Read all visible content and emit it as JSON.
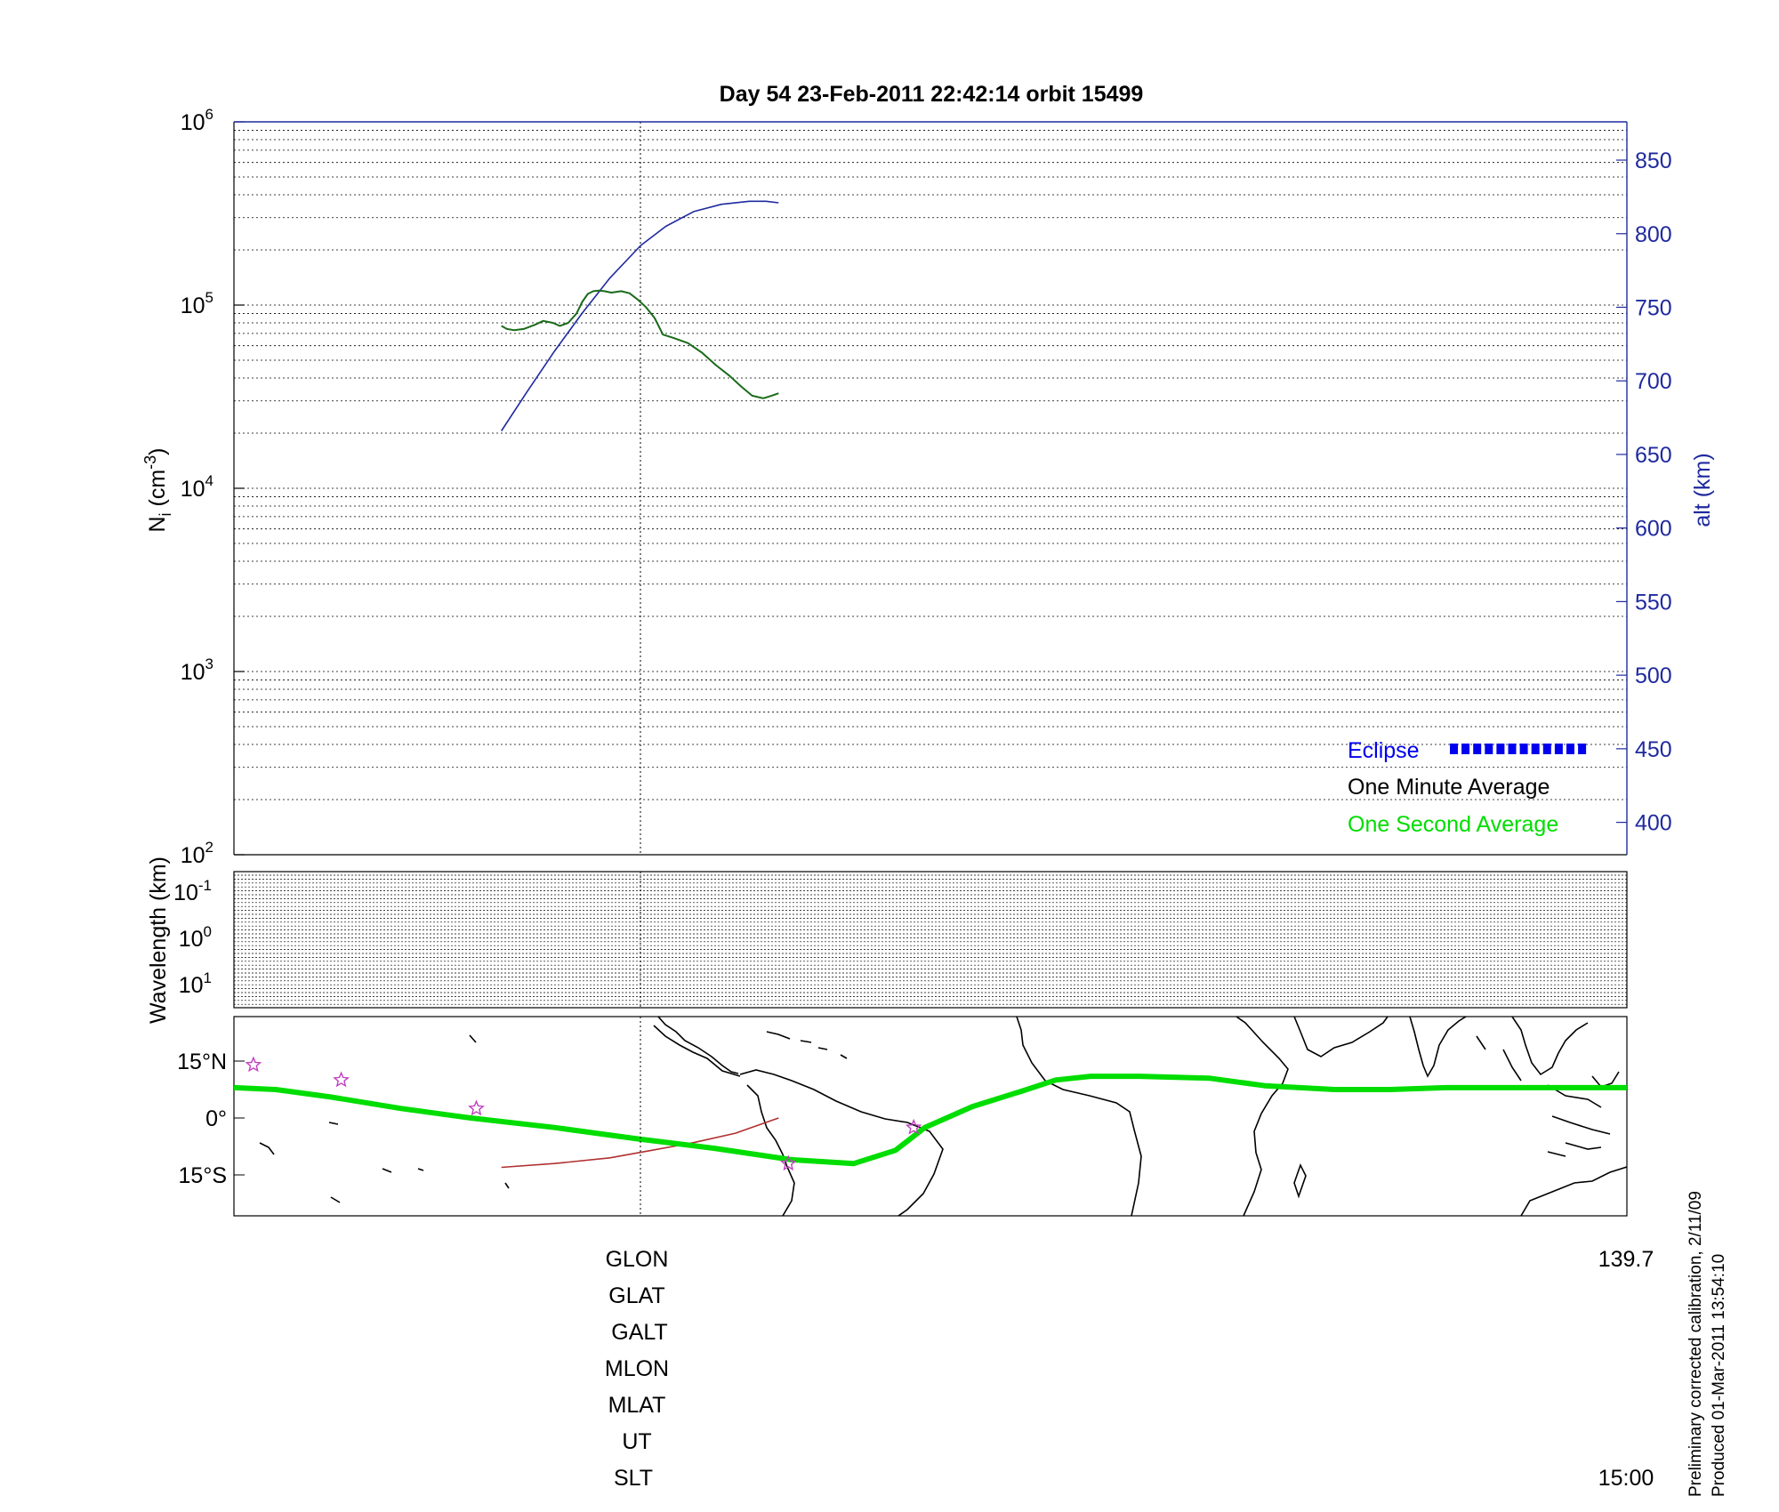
{
  "title": "Day 54  23-Feb-2011 22:42:14   orbit 15499",
  "footer": {
    "line1": "Preliminary corrected calibration, 2/11/09",
    "line2": "Produced 01-Mar-2011 13:54:10"
  },
  "bottom_labels": {
    "glon": "GLON",
    "glat": "GLAT",
    "galt": "GALT",
    "mlon": "MLON",
    "mlat": "MLAT",
    "ut": "UT",
    "slt": "SLT",
    "glon_end": "139.7",
    "slt_end": "15:00"
  },
  "colors": {
    "density": "#1a6b1a",
    "altitude": "#1f2a9e",
    "track": "#00dd00",
    "magnetic_track": "#b03030",
    "stations": "#c040c0",
    "eclipse": "#0000ee"
  },
  "chart_data": [
    {
      "type": "line",
      "panel": "ion density and altitude",
      "ylabel": "N_i (cm^-3)",
      "ylabel_parts": {
        "base": "N",
        "sub": "i",
        "unit": " (cm",
        "sup": "-3",
        "close": ")"
      },
      "y_scale": "log",
      "ylim": [
        100,
        1000000
      ],
      "y_ticks": [
        {
          "base": "10",
          "exp": "2"
        },
        {
          "base": "10",
          "exp": "3"
        },
        {
          "base": "10",
          "exp": "4"
        },
        {
          "base": "10",
          "exp": "5"
        },
        {
          "base": "10",
          "exp": "6"
        }
      ],
      "y2label": "alt (km)",
      "y2lim": [
        378,
        876
      ],
      "y2_ticks": [
        "400",
        "450",
        "500",
        "550",
        "600",
        "650",
        "700",
        "750",
        "800",
        "850"
      ],
      "grid": true,
      "legend_position": "bottom-right",
      "legend": [
        {
          "label": "Eclipse",
          "color": "#0000ee"
        },
        {
          "label": "One Minute Average",
          "color": "#000000"
        },
        {
          "label": "One Second Average",
          "color": "#00dd00"
        }
      ],
      "series": [
        {
          "id": "density",
          "axis": "left",
          "x": [
            0.192,
            0.196,
            0.201,
            0.208,
            0.216,
            0.222,
            0.229,
            0.234,
            0.24,
            0.246,
            0.25,
            0.254,
            0.258,
            0.262,
            0.266,
            0.271,
            0.278,
            0.284,
            0.29,
            0.296,
            0.302,
            0.308,
            0.316,
            0.326,
            0.336,
            0.346,
            0.356,
            0.364,
            0.372,
            0.38,
            0.386,
            0.391
          ],
          "values": [
            77000,
            74000,
            73000,
            74000,
            78000,
            82000,
            80000,
            77000,
            80000,
            90000,
            104000,
            115000,
            119000,
            120000,
            119000,
            117000,
            119000,
            116000,
            107000,
            97000,
            85000,
            69000,
            66000,
            62000,
            55000,
            47000,
            41000,
            36000,
            32000,
            31000,
            32000,
            33000
          ]
        },
        {
          "id": "altitude",
          "axis": "right",
          "x": [
            0.192,
            0.21,
            0.23,
            0.25,
            0.27,
            0.292,
            0.31,
            0.33,
            0.35,
            0.37,
            0.382,
            0.391
          ],
          "values": [
            666,
            692,
            720,
            746,
            770,
            792,
            805,
            815,
            820,
            822,
            822,
            821
          ]
        }
      ],
      "eclipse_segments": 12
    },
    {
      "type": "heatmap",
      "panel": "wavelength",
      "ylabel": "Wavelength (km)",
      "y_scale": "log",
      "y_ticks": [
        {
          "base": "10",
          "exp": "-1"
        },
        {
          "base": "10",
          "exp": "0"
        },
        {
          "base": "10",
          "exp": "1"
        }
      ],
      "grid": true
    },
    {
      "type": "scatter",
      "panel": "ground track map",
      "y_ticks": [
        "15°N",
        "0°",
        "15°S"
      ],
      "ylim": [
        -26,
        26
      ],
      "series": [
        {
          "id": "track",
          "x": [
            0.0,
            0.03,
            0.07,
            0.12,
            0.17,
            0.23,
            0.29,
            0.345,
            0.4,
            0.445,
            0.475,
            0.496,
            0.53,
            0.565,
            0.59,
            0.615,
            0.65,
            0.7,
            0.74,
            0.79,
            0.83,
            0.87,
            0.92,
            0.98,
            1.0
          ],
          "values": [
            8,
            7.5,
            5.5,
            2.5,
            0,
            -2.5,
            -5.5,
            -8,
            -11,
            -12,
            -8.5,
            -2.5,
            3,
            7,
            10,
            11,
            11,
            10.5,
            8.5,
            7.5,
            7.5,
            8,
            8,
            8,
            8
          ]
        },
        {
          "id": "magnetic_track",
          "x": [
            0.192,
            0.23,
            0.27,
            0.3,
            0.33,
            0.36,
            0.391
          ],
          "values": [
            -13,
            -12,
            -10.5,
            -8.5,
            -6.5,
            -4,
            0
          ]
        },
        {
          "id": "stations",
          "x": [
            0.014,
            0.077,
            0.174,
            0.398,
            0.488
          ],
          "values": [
            14,
            10,
            2.5,
            -12,
            -2.5
          ]
        }
      ]
    }
  ]
}
